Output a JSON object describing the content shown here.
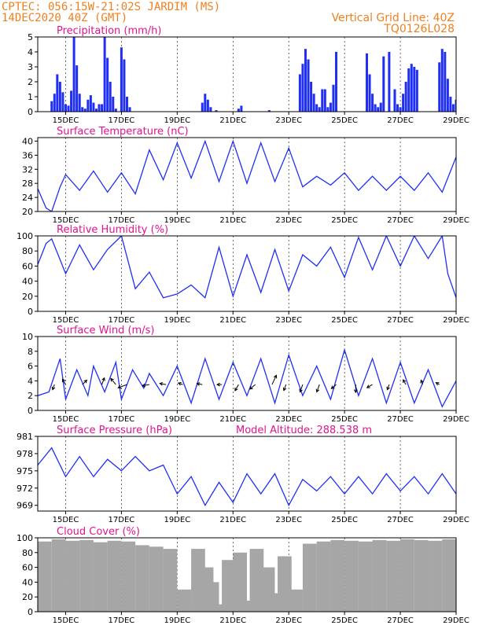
{
  "header": {
    "line1": "CPTEC:   056:15W-21:02S   JARDIM (MS)",
    "line2": "14DEC2020 40Z (GMT)",
    "grid_note": "Vertical Grid Line: 40Z",
    "code": "TQ0126L028"
  },
  "colors": {
    "header": "#f07f1f",
    "title": "#e0148f",
    "series": "#1f2ff5",
    "cloud": "#a6a6a6",
    "frame": "#000000"
  },
  "x_ticks": [
    "15DEC",
    "17DEC",
    "19DEC",
    "21DEC",
    "23DEC",
    "25DEC",
    "27DEC",
    "29DEC"
  ],
  "chart_data": [
    {
      "type": "bar",
      "title": "Precipitation (mm/h)",
      "ylim": [
        0,
        5
      ],
      "yticks": [
        0,
        1,
        2,
        3,
        4,
        5
      ],
      "x": [
        14.5,
        14.6,
        14.7,
        14.8,
        14.9,
        15.0,
        15.1,
        15.2,
        15.3,
        15.4,
        15.5,
        15.6,
        15.7,
        15.8,
        15.9,
        16.0,
        16.1,
        16.2,
        16.3,
        16.4,
        16.5,
        16.6,
        16.7,
        16.8,
        17.0,
        17.1,
        17.2,
        17.3,
        19.9,
        20.0,
        20.1,
        20.2,
        20.4,
        21.2,
        21.3,
        22.3,
        23.4,
        23.5,
        23.6,
        23.7,
        23.8,
        23.9,
        24.0,
        24.1,
        24.2,
        24.3,
        24.4,
        24.5,
        24.6,
        24.7,
        25.8,
        25.9,
        26.0,
        26.1,
        26.2,
        26.3,
        26.4,
        26.6,
        26.8,
        26.9,
        27.0,
        27.1,
        27.2,
        27.3,
        27.4,
        27.5,
        27.6,
        28.4,
        28.5,
        28.6,
        28.7,
        28.8,
        28.9,
        29.0,
        29.1,
        29.2,
        29.3,
        29.4,
        29.5,
        29.6,
        29.7,
        29.8
      ],
      "values": [
        0.7,
        1.2,
        2.5,
        2.0,
        1.3,
        0.5,
        0.4,
        1.4,
        5.0,
        3.1,
        1.2,
        0.3,
        0.2,
        0.8,
        1.1,
        0.6,
        0.2,
        0.5,
        0.5,
        5.0,
        3.6,
        2.0,
        1.0,
        0.2,
        4.3,
        3.5,
        1.0,
        0.3,
        0.6,
        1.2,
        0.8,
        0.3,
        0.1,
        0.2,
        0.4,
        0.1,
        2.5,
        3.2,
        4.2,
        3.5,
        2.0,
        1.2,
        0.5,
        0.3,
        1.5,
        1.5,
        0.3,
        0.6,
        1.8,
        4.0,
        3.9,
        2.5,
        1.2,
        0.5,
        0.3,
        0.6,
        3.7,
        4.0,
        1.5,
        0.5,
        0.3,
        1.2,
        2.0,
        2.9,
        3.2,
        3.0,
        2.8,
        3.3,
        4.2,
        4.0,
        2.2,
        1.0,
        0.5,
        0.8,
        0.3,
        0.2,
        0.1,
        0.1,
        0.1,
        0.1,
        0.1,
        0.1
      ]
    },
    {
      "type": "line",
      "title": "Surface Temperature (nC)",
      "ylim": [
        20,
        41
      ],
      "yticks": [
        20,
        24,
        28,
        32,
        36,
        40
      ],
      "x": [
        14.0,
        14.3,
        14.5,
        14.8,
        15.0,
        15.5,
        16.0,
        16.5,
        17.0,
        17.5,
        18.0,
        18.5,
        19.0,
        19.5,
        20.0,
        20.5,
        21.0,
        21.5,
        22.0,
        22.5,
        23.0,
        23.5,
        24.0,
        24.5,
        25.0,
        25.5,
        26.0,
        26.5,
        27.0,
        27.5,
        28.0,
        28.5,
        29.0
      ],
      "values": [
        26.5,
        21.0,
        20.0,
        27.0,
        30.5,
        26.0,
        31.5,
        25.5,
        31.0,
        25.0,
        37.5,
        29.0,
        39.5,
        29.5,
        40.0,
        28.5,
        40.0,
        28.0,
        39.5,
        28.5,
        38.0,
        27.0,
        30.0,
        27.5,
        31.0,
        26.0,
        30.0,
        26.0,
        30.0,
        26.0,
        31.0,
        25.5,
        35.5
      ]
    },
    {
      "type": "line",
      "title": "Relative Humidity (%)",
      "ylim": [
        0,
        100
      ],
      "yticks": [
        0,
        20,
        40,
        60,
        80,
        100
      ],
      "x": [
        14.0,
        14.3,
        14.5,
        15.0,
        15.5,
        16.0,
        16.5,
        17.0,
        17.5,
        18.0,
        18.5,
        19.0,
        19.5,
        20.0,
        20.5,
        21.0,
        21.5,
        22.0,
        22.5,
        23.0,
        23.5,
        24.0,
        24.5,
        25.0,
        25.5,
        26.0,
        26.5,
        27.0,
        27.5,
        28.0,
        28.5,
        28.7,
        29.0
      ],
      "values": [
        62.0,
        90.0,
        96.0,
        50.0,
        88.0,
        55.0,
        82.0,
        100.0,
        30.0,
        52.0,
        18.0,
        23.0,
        35.0,
        18.0,
        85.0,
        20.0,
        75.0,
        25.0,
        82.0,
        27.0,
        75.0,
        60.0,
        85.0,
        45.0,
        98.0,
        55.0,
        100.0,
        60.0,
        100.0,
        70.0,
        100.0,
        50.0,
        18.0
      ]
    },
    {
      "type": "line",
      "title": "Surface Wind (m/s)",
      "ylim": [
        0,
        10
      ],
      "yticks": [
        0,
        2,
        4,
        6,
        8,
        10
      ],
      "x": [
        14.0,
        14.4,
        14.8,
        15.0,
        15.4,
        15.8,
        16.0,
        16.4,
        16.8,
        17.0,
        17.4,
        17.8,
        18.0,
        18.5,
        19.0,
        19.5,
        20.0,
        20.5,
        21.0,
        21.5,
        22.0,
        22.5,
        23.0,
        23.5,
        24.0,
        24.5,
        25.0,
        25.5,
        26.0,
        26.5,
        27.0,
        27.5,
        28.0,
        28.5,
        29.0
      ],
      "values": [
        2.0,
        2.5,
        7.0,
        1.5,
        5.5,
        2.0,
        6.0,
        2.5,
        6.5,
        1.5,
        5.5,
        3.0,
        5.0,
        2.0,
        6.0,
        1.0,
        7.0,
        1.5,
        6.5,
        2.0,
        7.0,
        1.0,
        7.5,
        2.0,
        6.0,
        1.5,
        8.2,
        2.0,
        7.0,
        1.0,
        6.5,
        1.0,
        5.5,
        0.5,
        4.0
      ],
      "wind_arrows": [
        {
          "day": 14.6,
          "dir": 200,
          "len": 0.7
        },
        {
          "day": 15.0,
          "dir": 330,
          "len": 0.8
        },
        {
          "day": 15.6,
          "dir": 45,
          "len": 0.8
        },
        {
          "day": 16.3,
          "dir": 20,
          "len": 0.9
        },
        {
          "day": 16.8,
          "dir": 320,
          "len": 1.0
        },
        {
          "day": 17.2,
          "dir": 250,
          "len": 1.2
        },
        {
          "day": 18.0,
          "dir": 260,
          "len": 0.9
        },
        {
          "day": 18.6,
          "dir": 280,
          "len": 0.8
        },
        {
          "day": 19.2,
          "dir": 290,
          "len": 0.6
        },
        {
          "day": 19.9,
          "dir": 280,
          "len": 0.7
        },
        {
          "day": 20.6,
          "dir": 270,
          "len": 0.6
        },
        {
          "day": 21.2,
          "dir": 210,
          "len": 0.9
        },
        {
          "day": 21.8,
          "dir": 230,
          "len": 0.9
        },
        {
          "day": 22.4,
          "dir": 25,
          "len": 1.3
        },
        {
          "day": 22.9,
          "dir": 200,
          "len": 0.8
        },
        {
          "day": 23.5,
          "dir": 200,
          "len": 1.0
        },
        {
          "day": 24.1,
          "dir": 200,
          "len": 1.0
        },
        {
          "day": 24.7,
          "dir": 230,
          "len": 0.8
        },
        {
          "day": 25.4,
          "dir": 180,
          "len": 1.0
        },
        {
          "day": 26.0,
          "dir": 240,
          "len": 0.8
        },
        {
          "day": 26.6,
          "dir": 200,
          "len": 0.7
        },
        {
          "day": 27.2,
          "dir": 330,
          "len": 0.7
        },
        {
          "day": 27.8,
          "dir": 340,
          "len": 0.6
        },
        {
          "day": 28.4,
          "dir": 300,
          "len": 0.5
        }
      ]
    },
    {
      "type": "line",
      "title": "Surface Pressure (hPa)",
      "annotation": "Model Altitude: 288.538 m",
      "ylim": [
        968,
        981
      ],
      "yticks": [
        969,
        972,
        975,
        978,
        981
      ],
      "x": [
        14.0,
        14.5,
        15.0,
        15.5,
        16.0,
        16.5,
        17.0,
        17.5,
        18.0,
        18.5,
        19.0,
        19.5,
        20.0,
        20.5,
        21.0,
        21.5,
        22.0,
        22.5,
        23.0,
        23.5,
        24.0,
        24.5,
        25.0,
        25.5,
        26.0,
        26.5,
        27.0,
        27.5,
        28.0,
        28.5,
        29.0
      ],
      "values": [
        976.0,
        979.0,
        974.0,
        977.5,
        974.0,
        977.0,
        975.0,
        977.5,
        975.0,
        976.0,
        971.0,
        974.0,
        969.0,
        973.0,
        969.5,
        974.5,
        971.0,
        974.5,
        969.0,
        973.5,
        971.5,
        974.0,
        971.0,
        974.0,
        971.0,
        974.5,
        971.5,
        974.0,
        971.0,
        974.5,
        971.0
      ]
    },
    {
      "type": "bar",
      "title": "Cloud Cover (%)",
      "ylim": [
        0,
        100
      ],
      "yticks": [
        0,
        20,
        40,
        60,
        80,
        100
      ],
      "x": [
        14.0,
        14.5,
        15.0,
        15.5,
        16.0,
        16.5,
        17.0,
        17.5,
        18.0,
        18.5,
        19.0,
        19.2,
        19.5,
        19.8,
        20.0,
        20.3,
        20.6,
        21.0,
        21.3,
        21.6,
        22.0,
        22.3,
        22.6,
        23.0,
        23.5,
        24.0,
        24.5,
        25.0,
        25.5,
        26.0,
        26.5,
        27.0,
        27.5,
        28.0,
        28.5,
        29.0
      ],
      "values": [
        95.0,
        98.0,
        96.0,
        97.0,
        94.0,
        96.0,
        95.0,
        90.0,
        88.0,
        85.0,
        30.0,
        8.0,
        85.0,
        60.0,
        40.0,
        10.0,
        70.0,
        80.0,
        15.0,
        85.0,
        60.0,
        25.0,
        75.0,
        30.0,
        92.0,
        95.0,
        97.0,
        96.0,
        95.0,
        97.0,
        96.0,
        98.0,
        97.0,
        96.0,
        98.0,
        95.0
      ]
    }
  ]
}
